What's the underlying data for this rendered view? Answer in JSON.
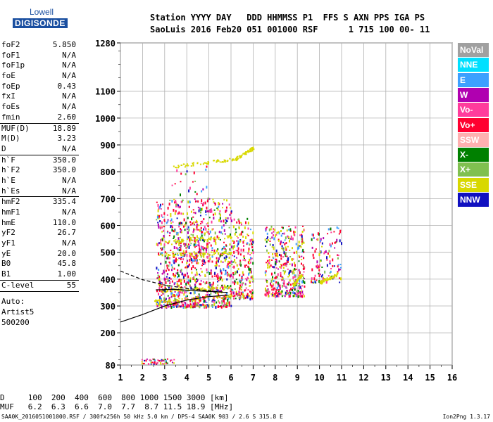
{
  "logo": {
    "line1": "Lowell",
    "line2": "DIGISONDE"
  },
  "header": {
    "line1": "Station YYYY DAY   DDD HHMMSS P1  FFS S AXN PPS IGA PS",
    "line2": "SaoLuis 2016 Feb20 051 001000 RSF      1 715 100 00- 11"
  },
  "params": [
    {
      "label": "foF2",
      "value": "5.850"
    },
    {
      "label": "foF1",
      "value": "N/A"
    },
    {
      "label": "foF1p",
      "value": "N/A"
    },
    {
      "label": "foE",
      "value": "N/A"
    },
    {
      "label": "foEp",
      "value": "0.43"
    },
    {
      "label": "fxI",
      "value": "N/A"
    },
    {
      "label": "foEs",
      "value": "N/A"
    },
    {
      "label": "fmin",
      "value": "2.60"
    },
    {
      "label": "MUF(D)",
      "value": "18.89",
      "sep": true
    },
    {
      "label": "M(D)",
      "value": "3.23"
    },
    {
      "label": "D",
      "value": "N/A"
    },
    {
      "label": "h`F",
      "value": "350.0",
      "sep": true
    },
    {
      "label": "h`F2",
      "value": "350.0"
    },
    {
      "label": "h`E",
      "value": "N/A"
    },
    {
      "label": "h`Es",
      "value": "N/A"
    },
    {
      "label": "hmF2",
      "value": "335.4",
      "sep": true
    },
    {
      "label": "hmF1",
      "value": "N/A"
    },
    {
      "label": "hmE",
      "value": "110.0"
    },
    {
      "label": "yF2",
      "value": "26.7"
    },
    {
      "label": "yF1",
      "value": "N/A"
    },
    {
      "label": "yE",
      "value": "20.0"
    },
    {
      "label": "B0",
      "value": "45.8"
    },
    {
      "label": "B1",
      "value": "1.00"
    },
    {
      "label": "C-level",
      "value": "55",
      "sep": true
    }
  ],
  "auto": {
    "line1": "Auto:",
    "line2": "Artist5",
    "line3": "500200"
  },
  "bottom": {
    "d_row": "D     100  200  400  600  800 1000 1500 3000 [km]",
    "muf_row": "MUF   6.2  6.3  6.6  7.0  7.7  8.7 11.5 18.9 [MHz]"
  },
  "footer": {
    "left": "SAA0K_2016051001000.RSF / 300fx256h 50 kHz 5.0 km / DPS-4 SAA0K 903 / 2.6 S 315.8 E",
    "right": "Ion2Png 1.3.17"
  },
  "legend": [
    {
      "label": "NoVal",
      "color": "#a0a0a0"
    },
    {
      "label": "NNE",
      "color": "#00e0ff"
    },
    {
      "label": "E",
      "color": "#3ca0ff"
    },
    {
      "label": "W",
      "color": "#b000b0"
    },
    {
      "label": "Vo-",
      "color": "#ff3c9c"
    },
    {
      "label": "Vo+",
      "color": "#ff0030"
    },
    {
      "label": "SSW",
      "color": "#ffb0b0"
    },
    {
      "label": "X-",
      "color": "#008000"
    },
    {
      "label": "X+",
      "color": "#80c050"
    },
    {
      "label": "SSE",
      "color": "#d8d800"
    },
    {
      "label": "NNW",
      "color": "#1010c0"
    }
  ],
  "chart_data": {
    "type": "scatter",
    "xlim": [
      1,
      16
    ],
    "ylim": [
      80,
      1280
    ],
    "xticks": [
      "1",
      "2",
      "3",
      "4",
      "5",
      "6",
      "7",
      "8",
      "9",
      "10",
      "11",
      "12",
      "13",
      "14",
      "15",
      "16"
    ],
    "yticks": [
      "80",
      "200",
      "300",
      "400",
      "500",
      "600",
      "700",
      "800",
      "900",
      "1000",
      "1100",
      "1280"
    ],
    "grid": true,
    "legend_position": "right",
    "fitted_curves": [
      {
        "style": "solid",
        "x": [
          1.0,
          2.0,
          3.0,
          4.0,
          5.0,
          5.85
        ],
        "y": [
          240,
          268,
          300,
          322,
          335,
          340
        ]
      },
      {
        "style": "dashed",
        "x": [
          1.0,
          2.0,
          3.0,
          4.0,
          5.0,
          5.85
        ],
        "y": [
          430,
          398,
          378,
          365,
          357,
          350
        ]
      },
      {
        "style": "solid",
        "x": [
          2.6,
          3.5,
          4.5,
          5.5,
          5.85
        ],
        "y": [
          360,
          362,
          356,
          352,
          350
        ]
      }
    ],
    "echo_regions": [
      {
        "xmin": 2.6,
        "xmax": 6.0,
        "ymin": 300,
        "ymax": 700,
        "density": 0.55
      },
      {
        "xmin": 6.0,
        "xmax": 7.0,
        "ymin": 330,
        "ymax": 630,
        "density": 0.6
      },
      {
        "xmin": 7.5,
        "xmax": 9.3,
        "ymin": 340,
        "ymax": 600,
        "density": 0.65
      },
      {
        "xmin": 9.6,
        "xmax": 11.0,
        "ymin": 390,
        "ymax": 600,
        "density": 0.3
      },
      {
        "xmin": 3.2,
        "xmax": 5.0,
        "ymin": 470,
        "ymax": 830,
        "density": 0.12
      }
    ],
    "sse_traces": [
      {
        "x": [
          3.3,
          6.2
        ],
        "y": [
          820,
          850
        ]
      },
      {
        "x": [
          6.2,
          7.0
        ],
        "y": [
          850,
          890
        ]
      },
      {
        "x": [
          3.0,
          6.0
        ],
        "y": [
          490,
          500
        ]
      },
      {
        "x": [
          3.0,
          6.0
        ],
        "y": [
          540,
          560
        ]
      },
      {
        "x": [
          2.8,
          6.0
        ],
        "y": [
          360,
          370
        ]
      },
      {
        "x": [
          2.5,
          6.0
        ],
        "y": [
          320,
          340
        ]
      },
      {
        "x": [
          8.8,
          9.2
        ],
        "y": [
          380,
          420
        ]
      },
      {
        "x": [
          10.0,
          10.8
        ],
        "y": [
          390,
          420
        ]
      }
    ]
  }
}
